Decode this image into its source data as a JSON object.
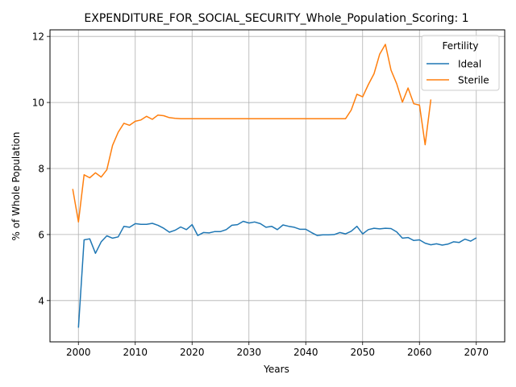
{
  "chart_data": {
    "type": "line",
    "title": "EXPENDITURE_FOR_SOCIAL_SECURITY_Whole_Population_Scoring: 1",
    "xlabel": "Years",
    "ylabel": "% of Whole Population",
    "xlim": [
      1995,
      2075
    ],
    "ylim": [
      2.75,
      12.2
    ],
    "xticks": [
      2000,
      2010,
      2020,
      2030,
      2040,
      2050,
      2060,
      2070
    ],
    "yticks": [
      4,
      6,
      8,
      10,
      12
    ],
    "grid": true,
    "legend": {
      "title": "Fertility",
      "placement": "top-right"
    },
    "series": [
      {
        "name": "Ideal",
        "color": "#1f77b4",
        "x": [
          2000,
          2001,
          2002,
          2003,
          2004,
          2005,
          2006,
          2007,
          2008,
          2009,
          2010,
          2011,
          2012,
          2013,
          2014,
          2015,
          2016,
          2017,
          2018,
          2019,
          2020,
          2021,
          2022,
          2023,
          2024,
          2025,
          2026,
          2027,
          2028,
          2029,
          2030,
          2031,
          2032,
          2033,
          2034,
          2035,
          2036,
          2037,
          2038,
          2039,
          2040,
          2041,
          2042,
          2043,
          2044,
          2045,
          2046,
          2047,
          2048,
          2049,
          2050,
          2051,
          2052,
          2053,
          2054,
          2055,
          2056,
          2057,
          2058,
          2059,
          2060,
          2061,
          2062,
          2063,
          2064,
          2065,
          2066,
          2067,
          2068,
          2069,
          2070
        ],
        "y": [
          3.18,
          5.84,
          5.87,
          5.43,
          5.78,
          5.96,
          5.89,
          5.93,
          6.25,
          6.22,
          6.33,
          6.31,
          6.31,
          6.34,
          6.28,
          6.19,
          6.07,
          6.13,
          6.23,
          6.15,
          6.3,
          5.97,
          6.06,
          6.05,
          6.09,
          6.09,
          6.15,
          6.28,
          6.3,
          6.4,
          6.35,
          6.38,
          6.33,
          6.22,
          6.25,
          6.15,
          6.29,
          6.25,
          6.22,
          6.16,
          6.16,
          6.06,
          5.97,
          5.99,
          5.99,
          6.0,
          6.06,
          6.02,
          6.1,
          6.25,
          6.02,
          6.15,
          6.19,
          6.17,
          6.19,
          6.18,
          6.08,
          5.89,
          5.91,
          5.82,
          5.84,
          5.74,
          5.69,
          5.72,
          5.68,
          5.71,
          5.78,
          5.76,
          5.86,
          5.8,
          5.9
        ]
      },
      {
        "name": "Sterile",
        "color": "#ff7f0e",
        "x": [
          1999,
          2000,
          2001,
          2002,
          2003,
          2004,
          2005,
          2006,
          2007,
          2008,
          2009,
          2010,
          2011,
          2012,
          2013,
          2014,
          2015,
          2016,
          2017,
          2018,
          2019,
          2020,
          2021,
          2022,
          2023,
          2024,
          2025,
          2026,
          2027,
          2028,
          2029,
          2030,
          2031,
          2032,
          2033,
          2034,
          2035,
          2036,
          2037,
          2038,
          2039,
          2040,
          2041,
          2042,
          2043,
          2044,
          2045,
          2046,
          2047,
          2048,
          2049,
          2050,
          2051,
          2052,
          2053,
          2054,
          2055,
          2056,
          2057,
          2058,
          2059,
          2060,
          2061,
          2062
        ],
        "y": [
          7.38,
          6.38,
          7.81,
          7.72,
          7.87,
          7.74,
          7.96,
          8.7,
          9.1,
          9.37,
          9.31,
          9.43,
          9.47,
          9.58,
          9.49,
          9.62,
          9.6,
          9.54,
          9.52,
          9.51,
          9.51,
          9.51,
          9.51,
          9.51,
          9.51,
          9.51,
          9.51,
          9.51,
          9.51,
          9.51,
          9.51,
          9.51,
          9.51,
          9.51,
          9.51,
          9.51,
          9.51,
          9.51,
          9.51,
          9.51,
          9.51,
          9.51,
          9.51,
          9.51,
          9.51,
          9.51,
          9.51,
          9.51,
          9.51,
          9.77,
          10.25,
          10.17,
          10.54,
          10.87,
          11.46,
          11.76,
          10.98,
          10.57,
          10.01,
          10.44,
          9.96,
          9.92,
          8.72,
          10.09
        ]
      }
    ]
  }
}
